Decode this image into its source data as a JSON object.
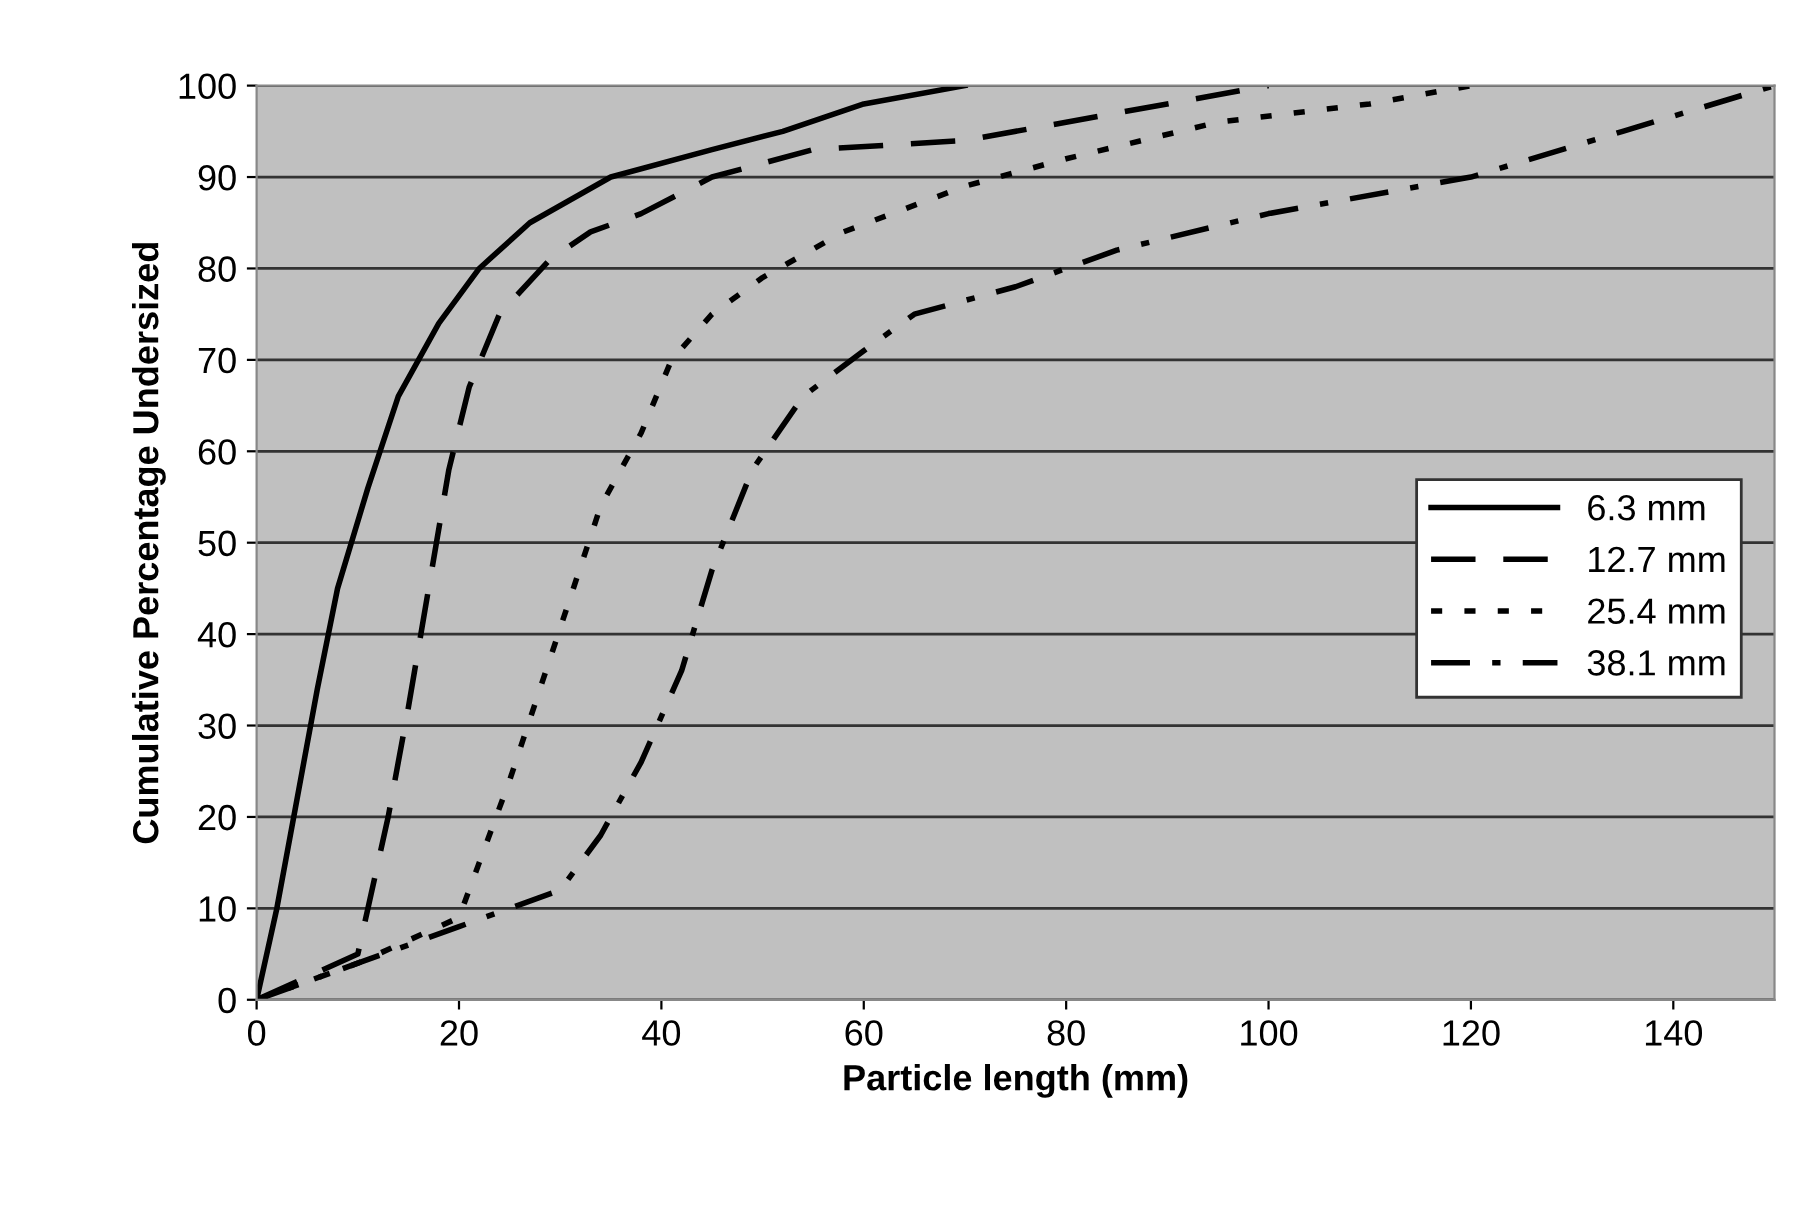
{
  "chart_data": {
    "type": "line",
    "xlabel": "Particle length (mm)",
    "ylabel": "Cumulative Percentage Undersized",
    "xlim": [
      0,
      150
    ],
    "xticks": [
      0,
      20,
      40,
      60,
      80,
      100,
      120,
      140
    ],
    "ylim": [
      0,
      100
    ],
    "yticks": [
      0,
      10,
      20,
      30,
      40,
      50,
      60,
      70,
      80,
      90,
      100
    ],
    "grid": "y",
    "legend": "right",
    "marker": "none",
    "series": [
      {
        "name": "6.3 mm",
        "color": "#000000",
        "line_style": "solid",
        "x": [
          0,
          2,
          4,
          6,
          8,
          11,
          14,
          18,
          22,
          27,
          35,
          45,
          52,
          60,
          70
        ],
        "values": [
          0,
          10,
          22,
          34,
          45,
          56,
          66,
          74,
          80,
          85,
          90,
          93,
          95,
          98,
          100
        ]
      },
      {
        "name": "12.7 mm",
        "color": "#000000",
        "line_style": "dashed",
        "x": [
          0,
          10,
          11,
          13,
          15,
          17,
          19,
          21,
          24,
          29,
          33,
          38,
          45,
          55,
          70,
          85,
          100
        ],
        "values": [
          0,
          5,
          10,
          20,
          32,
          45,
          58,
          67,
          75,
          81,
          84,
          86,
          90,
          93,
          94,
          97,
          100
        ]
      },
      {
        "name": "25.4 mm",
        "color": "#000000",
        "line_style": "dotted",
        "x": [
          0,
          10,
          20,
          22,
          25,
          28,
          31,
          34,
          38,
          41,
          45,
          50,
          58,
          70,
          80,
          95,
          110,
          120
        ],
        "values": [
          0,
          4,
          9,
          15,
          24,
          34,
          44,
          54,
          62,
          70,
          75,
          79,
          84,
          89,
          92,
          96,
          98,
          100
        ]
      },
      {
        "name": "38.1 mm",
        "color": "#000000",
        "line_style": "dashdot",
        "x": [
          0,
          10,
          20,
          30,
          34,
          38,
          42,
          45,
          49,
          54,
          60,
          65,
          75,
          85,
          100,
          120,
          135,
          150
        ],
        "values": [
          0,
          4,
          8,
          12,
          18,
          26,
          36,
          47,
          58,
          66,
          71,
          75,
          78,
          82,
          86,
          90,
          95,
          100
        ]
      }
    ]
  }
}
